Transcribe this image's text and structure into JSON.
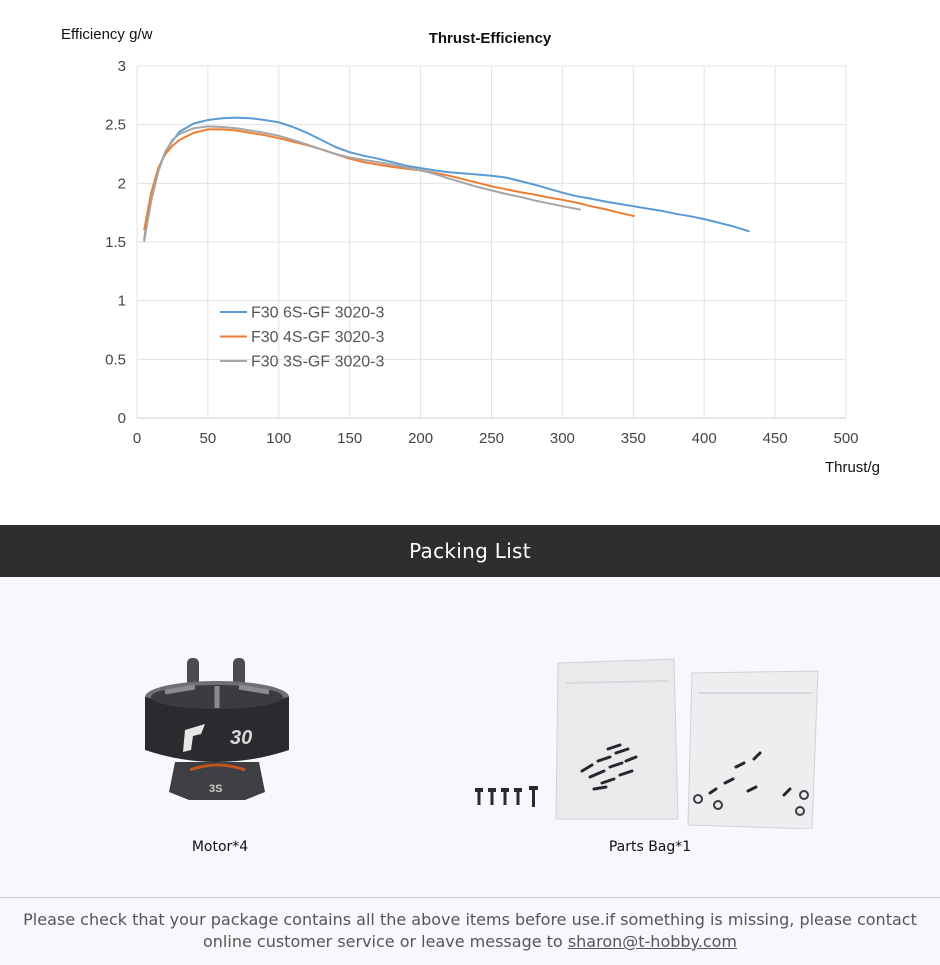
{
  "chart_data": {
    "type": "line",
    "title": "Thrust-Efficiency",
    "ylabel": "Efficiency g/w",
    "xlabel": "Thrust/g",
    "xlim": [
      0,
      500
    ],
    "ylim": [
      0,
      3
    ],
    "x_ticks": [
      0,
      50,
      100,
      150,
      200,
      250,
      300,
      350,
      400,
      450,
      500
    ],
    "y_ticks": [
      0,
      0.5,
      1,
      1.5,
      2,
      2.5,
      3
    ],
    "y_tick_labels": [
      "0",
      "0.5",
      "1",
      "1.5",
      "2",
      "2.5",
      "3"
    ],
    "grid": true,
    "legend_position": "lower-left",
    "series": [
      {
        "name": "F30 6S-GF 3020-3",
        "color": "#5b9bd5",
        "points": [
          [
            5,
            1.52
          ],
          [
            10,
            1.9
          ],
          [
            15,
            2.12
          ],
          [
            20,
            2.27
          ],
          [
            25,
            2.36
          ],
          [
            30,
            2.44
          ],
          [
            40,
            2.51
          ],
          [
            50,
            2.54
          ],
          [
            60,
            2.555
          ],
          [
            70,
            2.56
          ],
          [
            80,
            2.555
          ],
          [
            90,
            2.54
          ],
          [
            100,
            2.52
          ],
          [
            110,
            2.48
          ],
          [
            120,
            2.43
          ],
          [
            130,
            2.37
          ],
          [
            140,
            2.31
          ],
          [
            150,
            2.265
          ],
          [
            160,
            2.235
          ],
          [
            170,
            2.21
          ],
          [
            180,
            2.18
          ],
          [
            190,
            2.15
          ],
          [
            200,
            2.13
          ],
          [
            210,
            2.11
          ],
          [
            220,
            2.095
          ],
          [
            230,
            2.085
          ],
          [
            240,
            2.075
          ],
          [
            250,
            2.065
          ],
          [
            260,
            2.05
          ],
          [
            270,
            2.02
          ],
          [
            280,
            1.99
          ],
          [
            290,
            1.955
          ],
          [
            300,
            1.92
          ],
          [
            310,
            1.89
          ],
          [
            320,
            1.87
          ],
          [
            330,
            1.845
          ],
          [
            340,
            1.825
          ],
          [
            350,
            1.805
          ],
          [
            360,
            1.785
          ],
          [
            370,
            1.765
          ],
          [
            380,
            1.74
          ],
          [
            390,
            1.72
          ],
          [
            400,
            1.695
          ],
          [
            410,
            1.665
          ],
          [
            420,
            1.635
          ],
          [
            432,
            1.59
          ]
        ]
      },
      {
        "name": "F30 4S-GF 3020-3",
        "color": "#ed7d31",
        "points": [
          [
            5,
            1.6
          ],
          [
            10,
            1.92
          ],
          [
            15,
            2.13
          ],
          [
            20,
            2.25
          ],
          [
            25,
            2.32
          ],
          [
            30,
            2.37
          ],
          [
            40,
            2.43
          ],
          [
            50,
            2.46
          ],
          [
            60,
            2.46
          ],
          [
            70,
            2.45
          ],
          [
            80,
            2.43
          ],
          [
            90,
            2.41
          ],
          [
            100,
            2.385
          ],
          [
            110,
            2.355
          ],
          [
            120,
            2.325
          ],
          [
            130,
            2.29
          ],
          [
            140,
            2.25
          ],
          [
            150,
            2.21
          ],
          [
            160,
            2.18
          ],
          [
            170,
            2.16
          ],
          [
            180,
            2.14
          ],
          [
            190,
            2.125
          ],
          [
            200,
            2.11
          ],
          [
            210,
            2.09
          ],
          [
            220,
            2.065
          ],
          [
            230,
            2.035
          ],
          [
            240,
            2.005
          ],
          [
            250,
            1.975
          ],
          [
            260,
            1.95
          ],
          [
            270,
            1.925
          ],
          [
            280,
            1.905
          ],
          [
            290,
            1.88
          ],
          [
            300,
            1.86
          ],
          [
            310,
            1.835
          ],
          [
            320,
            1.805
          ],
          [
            330,
            1.78
          ],
          [
            340,
            1.75
          ],
          [
            351,
            1.72
          ]
        ]
      },
      {
        "name": "F30 3S-GF 3020-3",
        "color": "#a5a5a5",
        "points": [
          [
            5,
            1.5
          ],
          [
            10,
            1.85
          ],
          [
            15,
            2.1
          ],
          [
            20,
            2.27
          ],
          [
            25,
            2.37
          ],
          [
            30,
            2.42
          ],
          [
            40,
            2.47
          ],
          [
            50,
            2.485
          ],
          [
            60,
            2.48
          ],
          [
            70,
            2.47
          ],
          [
            80,
            2.45
          ],
          [
            90,
            2.43
          ],
          [
            100,
            2.405
          ],
          [
            110,
            2.37
          ],
          [
            120,
            2.33
          ],
          [
            130,
            2.29
          ],
          [
            140,
            2.25
          ],
          [
            150,
            2.22
          ],
          [
            160,
            2.2
          ],
          [
            170,
            2.18
          ],
          [
            180,
            2.16
          ],
          [
            190,
            2.135
          ],
          [
            200,
            2.11
          ],
          [
            210,
            2.08
          ],
          [
            220,
            2.04
          ],
          [
            230,
            2.005
          ],
          [
            240,
            1.97
          ],
          [
            250,
            1.94
          ],
          [
            260,
            1.91
          ],
          [
            270,
            1.885
          ],
          [
            280,
            1.855
          ],
          [
            290,
            1.83
          ],
          [
            300,
            1.805
          ],
          [
            313,
            1.775
          ]
        ]
      }
    ]
  },
  "packing": {
    "heading": "Packing List",
    "items": [
      {
        "label": "Motor*4"
      },
      {
        "label": "Parts Bag*1"
      }
    ]
  },
  "footer": {
    "text": "Please check that your package contains all the above items before use.if something is missing, please contact online customer service or leave message to",
    "email": "sharon@t-hobby.com"
  }
}
